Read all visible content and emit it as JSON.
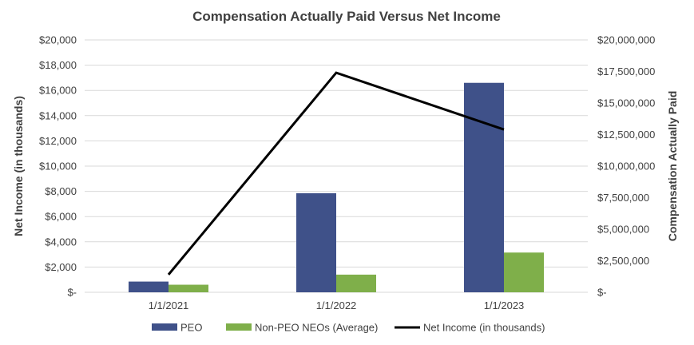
{
  "chart_data": {
    "type": "bar",
    "title": "Compensation Actually Paid Versus Net Income",
    "categories": [
      "1/1/2021",
      "1/1/2022",
      "1/1/2023"
    ],
    "ylabel_left": "Net Income (in thousands)",
    "ylabel_right": "Compensation Actually Paid",
    "ylim_left": [
      0,
      20000
    ],
    "ylim_right": [
      0,
      20000000
    ],
    "yticks_left": [
      "$-",
      "$2,000",
      "$4,000",
      "$6,000",
      "$8,000",
      "$10,000",
      "$12,000",
      "$14,000",
      "$16,000",
      "$18,000",
      "$20,000"
    ],
    "yticks_right": [
      "$-",
      "$2,500,000",
      "$5,000,000",
      "$7,500,000",
      "$10,000,000",
      "$12,500,000",
      "$15,000,000",
      "$17,500,000",
      "$20,000,000"
    ],
    "grid": true,
    "legend_position": "bottom",
    "series": [
      {
        "name": "PEO",
        "type": "bar",
        "axis": "right",
        "color": "#3f5189",
        "values": [
          850000,
          7850000,
          16600000
        ]
      },
      {
        "name": "Non-PEO NEOs (Average)",
        "type": "bar",
        "axis": "right",
        "color": "#7faf4a",
        "values": [
          600000,
          1400000,
          3150000
        ]
      },
      {
        "name": "Net Income (in thousands)",
        "type": "line",
        "axis": "left",
        "color": "#000000",
        "values": [
          1400,
          17400,
          12900
        ]
      }
    ]
  }
}
